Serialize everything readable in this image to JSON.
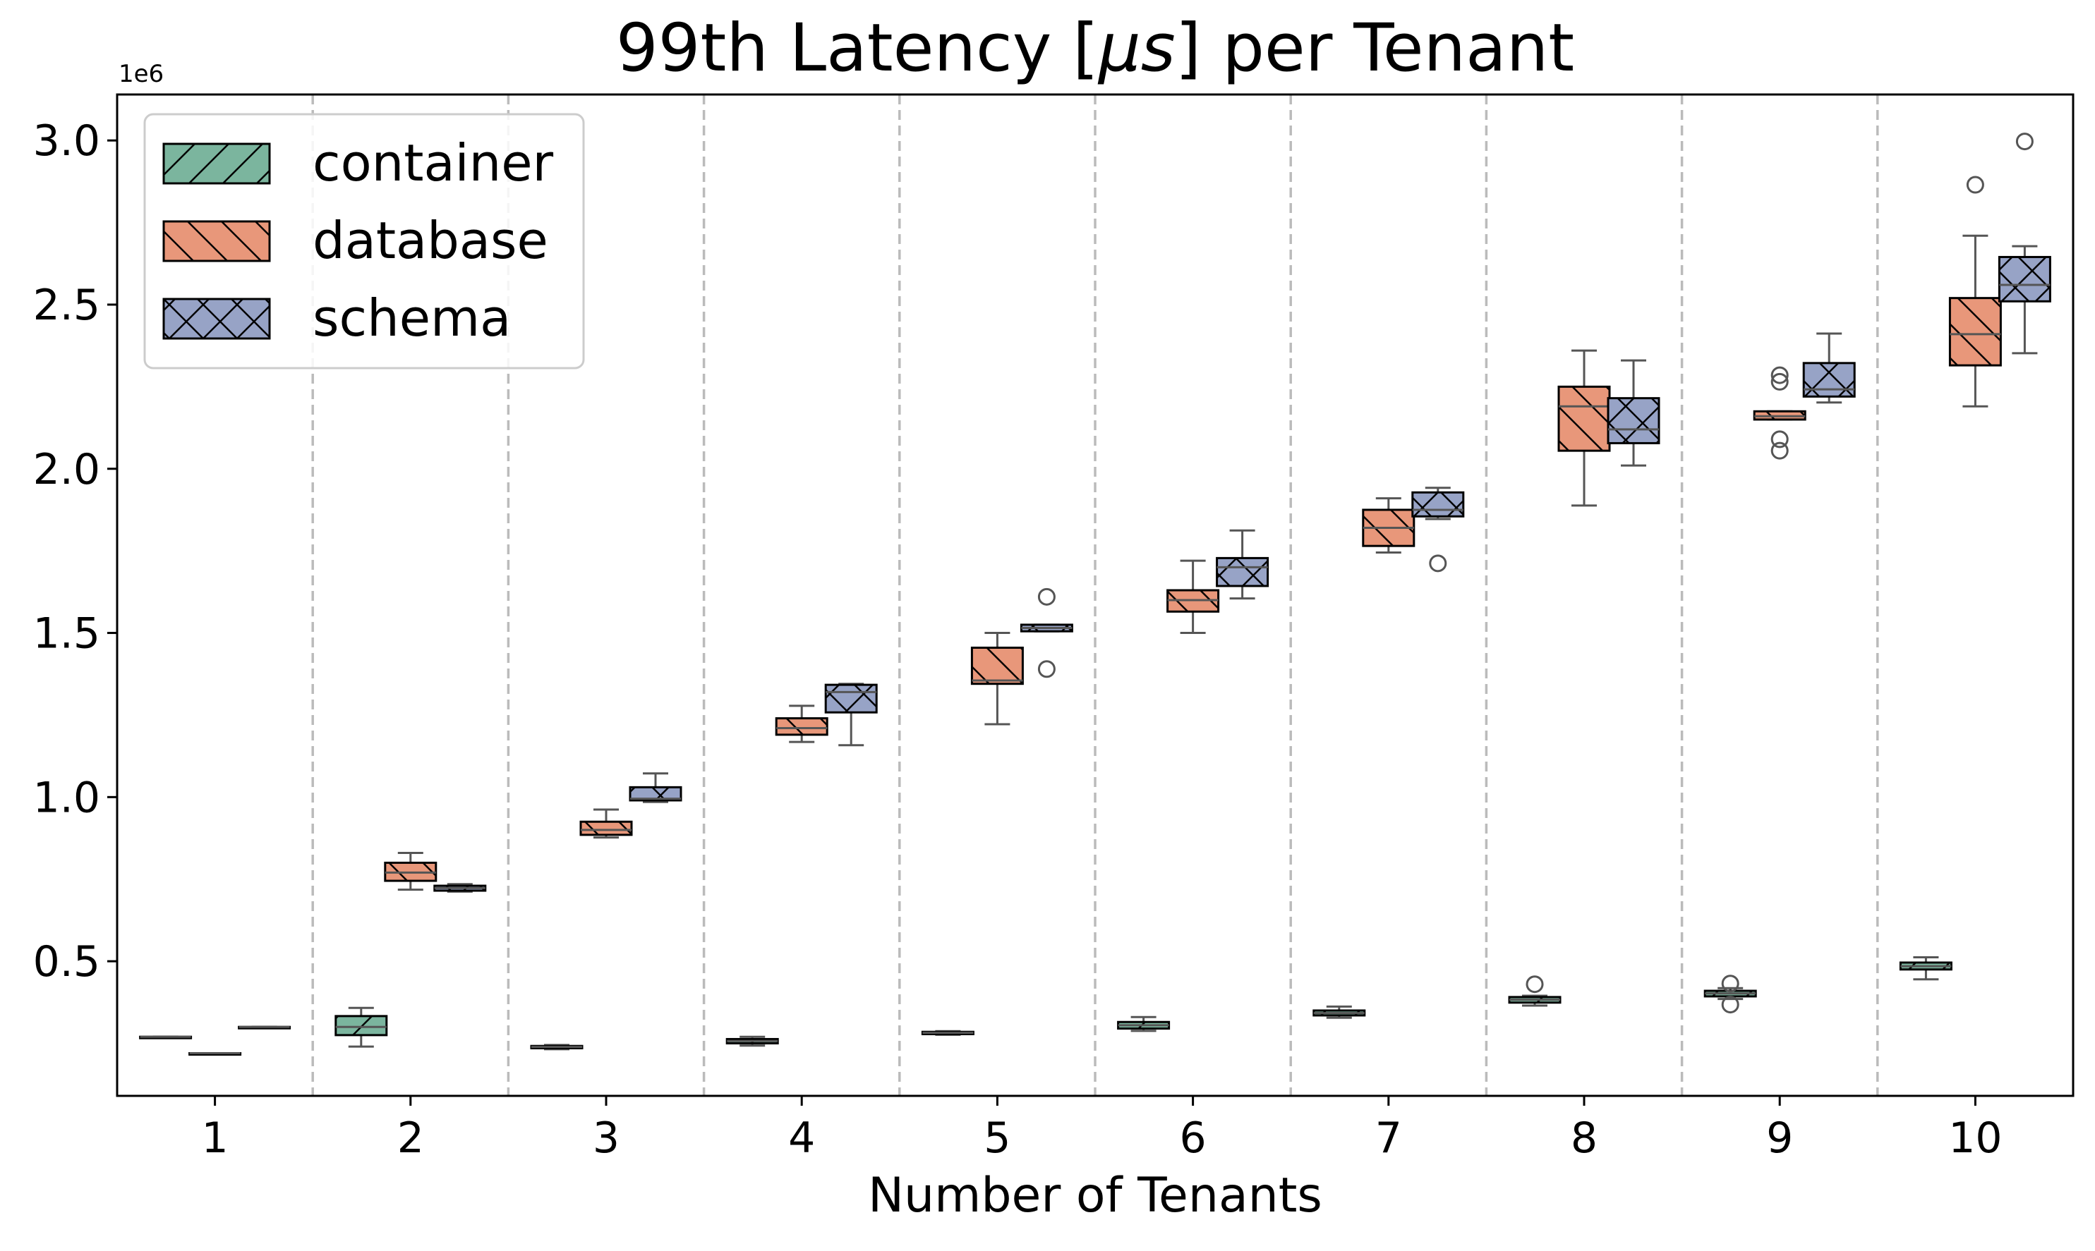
{
  "chart_data": {
    "type": "box",
    "title_parts": [
      "99th Latency [",
      "μs",
      "] per Tenant"
    ],
    "xlabel": "Number of Tenants",
    "ylabel": "",
    "y_offset_label": "1e6",
    "categories": [
      "1",
      "2",
      "3",
      "4",
      "5",
      "6",
      "7",
      "8",
      "9",
      "10"
    ],
    "ylim": [
      90000,
      3140000
    ],
    "y_ticks": [
      500000,
      1000000,
      1500000,
      2000000,
      2500000,
      3000000
    ],
    "y_tick_labels": [
      "0.5",
      "1.0",
      "1.5",
      "2.0",
      "2.5",
      "3.0"
    ],
    "grid": false,
    "legend_position": "top-left",
    "colors": {
      "container": "#7bb59e",
      "database": "#e8977a",
      "schema": "#97a3c6",
      "outline": "#000000",
      "whisker": "#555555",
      "separator": "#bbbbbb"
    },
    "series": [
      {
        "name": "container",
        "hatch": "/",
        "boxes": [
          {
            "category": "1",
            "q1": 270000,
            "median": 270000,
            "q3": 270000,
            "whisker_low": 270000,
            "whisker_high": 270000,
            "fliers": []
          },
          {
            "category": "2",
            "q1": 275000,
            "median": 300000,
            "q3": 333000,
            "whisker_low": 240000,
            "whisker_high": 358000,
            "fliers": []
          },
          {
            "category": "3",
            "q1": 235000,
            "median": 239000,
            "q3": 242000,
            "whisker_low": 232000,
            "whisker_high": 245000,
            "fliers": []
          },
          {
            "category": "4",
            "q1": 250000,
            "median": 257000,
            "q3": 263000,
            "whisker_low": 243000,
            "whisker_high": 270000,
            "fliers": []
          },
          {
            "category": "5",
            "q1": 278000,
            "median": 282000,
            "q3": 285000,
            "whisker_low": 276000,
            "whisker_high": 287000,
            "fliers": []
          },
          {
            "category": "6",
            "q1": 295000,
            "median": 305000,
            "q3": 315000,
            "whisker_low": 288000,
            "whisker_high": 330000,
            "fliers": []
          },
          {
            "category": "7",
            "q1": 335000,
            "median": 342000,
            "q3": 350000,
            "whisker_low": 328000,
            "whisker_high": 362000,
            "fliers": []
          },
          {
            "category": "8",
            "q1": 374000,
            "median": 383000,
            "q3": 391000,
            "whisker_low": 365000,
            "whisker_high": 395000,
            "fliers": [
              430000
            ]
          },
          {
            "category": "9",
            "q1": 393000,
            "median": 402000,
            "q3": 410000,
            "whisker_low": 385000,
            "whisker_high": 418000,
            "fliers": [
              368000,
              432000
            ]
          },
          {
            "category": "10",
            "q1": 475000,
            "median": 485000,
            "q3": 496000,
            "whisker_low": 445000,
            "whisker_high": 512000,
            "fliers": []
          }
        ]
      },
      {
        "name": "database",
        "hatch": "\\",
        "boxes": [
          {
            "category": "1",
            "q1": 220000,
            "median": 220000,
            "q3": 220000,
            "whisker_low": 220000,
            "whisker_high": 220000,
            "fliers": []
          },
          {
            "category": "2",
            "q1": 745000,
            "median": 770000,
            "q3": 800000,
            "whisker_low": 718000,
            "whisker_high": 830000,
            "fliers": []
          },
          {
            "category": "3",
            "q1": 885000,
            "median": 900000,
            "q3": 925000,
            "whisker_low": 877000,
            "whisker_high": 962000,
            "fliers": []
          },
          {
            "category": "4",
            "q1": 1190000,
            "median": 1210000,
            "q3": 1240000,
            "whisker_low": 1168000,
            "whisker_high": 1278000,
            "fliers": []
          },
          {
            "category": "5",
            "q1": 1345000,
            "median": 1355000,
            "q3": 1455000,
            "whisker_low": 1222000,
            "whisker_high": 1500000,
            "fliers": []
          },
          {
            "category": "6",
            "q1": 1565000,
            "median": 1600000,
            "q3": 1630000,
            "whisker_low": 1500000,
            "whisker_high": 1720000,
            "fliers": []
          },
          {
            "category": "7",
            "q1": 1765000,
            "median": 1820000,
            "q3": 1875000,
            "whisker_low": 1745000,
            "whisker_high": 1910000,
            "fliers": []
          },
          {
            "category": "8",
            "q1": 2055000,
            "median": 2190000,
            "q3": 2250000,
            "whisker_low": 1888000,
            "whisker_high": 2360000,
            "fliers": []
          },
          {
            "category": "9",
            "q1": 2150000,
            "median": 2160000,
            "q3": 2175000,
            "whisker_low": 2150000,
            "whisker_high": 2175000,
            "fliers": [
              2055000,
              2090000,
              2265000,
              2285000
            ]
          },
          {
            "category": "10",
            "q1": 2315000,
            "median": 2410000,
            "q3": 2520000,
            "whisker_low": 2190000,
            "whisker_high": 2710000,
            "fliers": [
              2865000
            ]
          }
        ]
      },
      {
        "name": "schema",
        "hatch": "x",
        "boxes": [
          {
            "category": "1",
            "q1": 300000,
            "median": 300000,
            "q3": 300000,
            "whisker_low": 300000,
            "whisker_high": 300000,
            "fliers": []
          },
          {
            "category": "2",
            "q1": 715000,
            "median": 723000,
            "q3": 730000,
            "whisker_low": 712000,
            "whisker_high": 735000,
            "fliers": []
          },
          {
            "category": "3",
            "q1": 990000,
            "median": 995000,
            "q3": 1030000,
            "whisker_low": 985000,
            "whisker_high": 1072000,
            "fliers": []
          },
          {
            "category": "4",
            "q1": 1258000,
            "median": 1320000,
            "q3": 1342000,
            "whisker_low": 1158000,
            "whisker_high": 1345000,
            "fliers": []
          },
          {
            "category": "5",
            "q1": 1505000,
            "median": 1515000,
            "q3": 1525000,
            "whisker_low": 1505000,
            "whisker_high": 1525000,
            "fliers": [
              1390000,
              1610000
            ]
          },
          {
            "category": "6",
            "q1": 1643000,
            "median": 1700000,
            "q3": 1728000,
            "whisker_low": 1605000,
            "whisker_high": 1812000,
            "fliers": []
          },
          {
            "category": "7",
            "q1": 1855000,
            "median": 1875000,
            "q3": 1928000,
            "whisker_low": 1847000,
            "whisker_high": 1942000,
            "fliers": [
              1712000
            ]
          },
          {
            "category": "8",
            "q1": 2078000,
            "median": 2120000,
            "q3": 2215000,
            "whisker_low": 2010000,
            "whisker_high": 2330000,
            "fliers": []
          },
          {
            "category": "9",
            "q1": 2220000,
            "median": 2242000,
            "q3": 2322000,
            "whisker_low": 2202000,
            "whisker_high": 2412000,
            "fliers": []
          },
          {
            "category": "10",
            "q1": 2510000,
            "median": 2560000,
            "q3": 2645000,
            "whisker_low": 2352000,
            "whisker_high": 2678000,
            "fliers": [
              2997000
            ]
          }
        ]
      }
    ]
  }
}
